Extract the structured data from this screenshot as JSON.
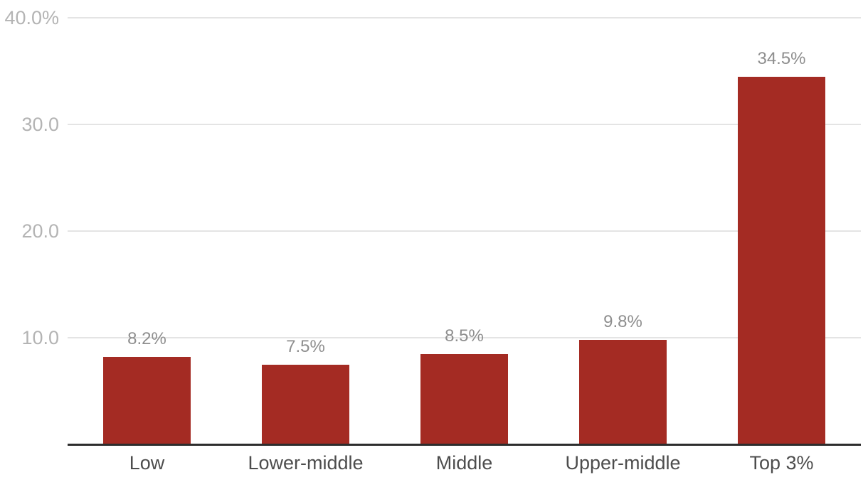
{
  "chart_data": {
    "type": "bar",
    "title": "",
    "xlabel": "",
    "ylabel": "",
    "categories": [
      "Low",
      "Lower-middle",
      "Middle",
      "Upper-middle",
      "Top 3%"
    ],
    "values": [
      8.2,
      7.5,
      8.5,
      9.8,
      34.5
    ],
    "value_labels": [
      "8.2%",
      "7.5%",
      "8.5%",
      "9.8%",
      "34.5%"
    ],
    "ylim": [
      0,
      40
    ],
    "yticks": [
      {
        "value": 40,
        "label": "40.0%"
      },
      {
        "value": 30,
        "label": "30.0"
      },
      {
        "value": 20,
        "label": "20.0"
      },
      {
        "value": 10,
        "label": "10.0"
      }
    ],
    "grid": "horizontal",
    "legend": "none",
    "colors": {
      "bar": "#a42b23",
      "gridline": "#e4e4e4",
      "axis_line": "#2d2d2d",
      "ytick_label": "#b4b4b4",
      "value_label": "#8e8e8e",
      "x_label": "#4d4d4d",
      "background": "#ffffff"
    }
  }
}
